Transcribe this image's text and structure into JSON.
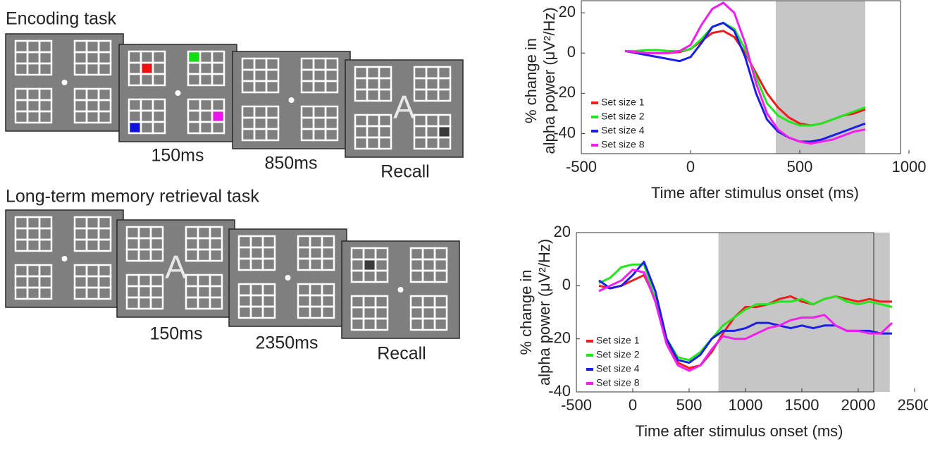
{
  "diagram": {
    "rows": [
      {
        "title": "Encoding task",
        "cue": "A",
        "durations": [
          "150ms",
          "850ms",
          "Recall"
        ]
      },
      {
        "title": "Long-term memory retrieval task",
        "cue": "A",
        "durations": [
          "150ms",
          "2350ms",
          "Recall"
        ]
      }
    ]
  },
  "chart_data": [
    {
      "type": "line",
      "xlabel": "Time after stimulus onset (ms)",
      "ylabel": [
        "% change in",
        "alpha power (μV²/Hz)"
      ],
      "x": [
        -300,
        -250,
        -200,
        -150,
        -100,
        -50,
        0,
        50,
        100,
        150,
        200,
        250,
        300,
        350,
        400,
        450,
        500,
        550,
        600,
        650,
        700,
        750,
        800
      ],
      "series": [
        {
          "name": "Set size 1",
          "color": "#ee1c1c",
          "values": [
            1,
            0.5,
            0,
            0,
            0,
            0.5,
            2,
            6,
            10,
            11,
            8,
            0,
            -10,
            -20,
            -27,
            -32,
            -35,
            -36,
            -35,
            -33,
            -31,
            -30,
            -28
          ]
        },
        {
          "name": "Set size 2",
          "color": "#22e61e",
          "values": [
            1,
            1,
            1.5,
            1.5,
            1,
            1,
            2,
            7,
            13,
            15,
            12,
            2,
            -12,
            -25,
            -31,
            -34,
            -36,
            -36,
            -35,
            -33,
            -31,
            -29,
            -27
          ]
        },
        {
          "name": "Set size 4",
          "color": "#1a1ee6",
          "values": [
            1,
            0,
            -1,
            -2,
            -3,
            -4,
            -2,
            5,
            13,
            15,
            11,
            -2,
            -20,
            -33,
            -39,
            -42,
            -44,
            -44,
            -43,
            -41,
            -39,
            -37,
            -35
          ]
        },
        {
          "name": "Set size 8",
          "color": "#f21ef0",
          "values": [
            1,
            0.5,
            0,
            0,
            0,
            1,
            4,
            14,
            22,
            25,
            20,
            5,
            -15,
            -30,
            -38,
            -42,
            -44,
            -45,
            -44,
            -43,
            -41,
            -39,
            -38
          ]
        }
      ],
      "shaded_interval": [
        390,
        800
      ],
      "xlim": [
        -500,
        1000
      ],
      "xticks": [
        -500,
        0,
        500,
        1000
      ],
      "ylim": [
        -50,
        26
      ],
      "yticks": [
        -40,
        -20,
        0,
        20
      ],
      "legend": "lower left"
    },
    {
      "type": "line",
      "xlabel": "Time after stimulus onset (ms)",
      "ylabel": [
        "% change in",
        "alpha power (μV²/Hz)"
      ],
      "x": [
        -300,
        -200,
        -100,
        0,
        100,
        200,
        300,
        400,
        500,
        600,
        700,
        800,
        900,
        1000,
        1100,
        1200,
        1300,
        1400,
        1500,
        1600,
        1700,
        1800,
        1900,
        2000,
        2100,
        2200,
        2300
      ],
      "series": [
        {
          "name": "Set size 1",
          "color": "#ee1c1c",
          "values": [
            0,
            -1,
            0,
            2,
            4,
            -5,
            -20,
            -29,
            -31,
            -30,
            -25,
            -18,
            -12,
            -8,
            -8,
            -7,
            -5,
            -4,
            -6,
            -7,
            -5,
            -4,
            -5,
            -6,
            -5,
            -6,
            -6
          ]
        },
        {
          "name": "Set size 2",
          "color": "#22e61e",
          "values": [
            1,
            3,
            7,
            8,
            8,
            -5,
            -20,
            -27,
            -28,
            -25,
            -20,
            -15,
            -12,
            -9,
            -7,
            -7,
            -6,
            -6,
            -5,
            -7,
            -5,
            -4,
            -6,
            -7,
            -6,
            -7,
            -8
          ]
        },
        {
          "name": "Set size 4",
          "color": "#1a1ee6",
          "values": [
            2,
            -1,
            0,
            4,
            9,
            -2,
            -20,
            -28,
            -29,
            -26,
            -20,
            -17,
            -17,
            -16,
            -14,
            -14,
            -15,
            -16,
            -15,
            -16,
            -15,
            -15,
            -17,
            -17,
            -17,
            -18,
            -18
          ]
        },
        {
          "name": "Set size 8",
          "color": "#f21ef0",
          "values": [
            -2,
            0,
            2,
            6,
            5,
            -6,
            -22,
            -30,
            -32,
            -30,
            -24,
            -19,
            -20,
            -20,
            -18,
            -16,
            -15,
            -13,
            -12,
            -12,
            -11,
            -15,
            -17,
            -17,
            -18,
            -18,
            -14
          ]
        }
      ],
      "shaded_interval": [
        760,
        2280
      ],
      "xlim": [
        -500,
        2500
      ],
      "xticks": [
        -500,
        0,
        500,
        1000,
        1500,
        2000,
        2500
      ],
      "ylim": [
        -40,
        20
      ],
      "yticks": [
        -40,
        -20,
        0,
        20
      ],
      "legend": "lower left"
    }
  ]
}
